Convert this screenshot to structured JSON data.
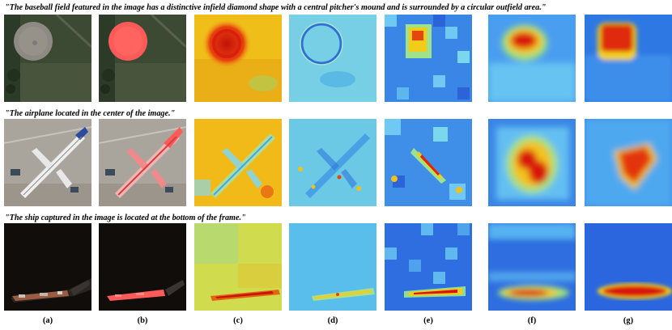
{
  "rows": [
    {
      "caption": "\"The baseball field featured in the image has a distinctive infield diamond shape with a central pitcher's mound and is surrounded by a circular outfield area.\""
    },
    {
      "caption": "\"The airplane located in the center of the image.\""
    },
    {
      "caption": "\"The ship captured in the image is located at the bottom of the frame.\""
    }
  ],
  "column_labels": [
    "(a)",
    "(b)",
    "(c)",
    "(d)",
    "(e)",
    "(f)",
    "(g)"
  ],
  "colors": {
    "mask": "#ff5a5a",
    "jet_low": "#1e3ad6",
    "jet_mid": "#5fd0f5",
    "jet_high": "#d4150b"
  }
}
